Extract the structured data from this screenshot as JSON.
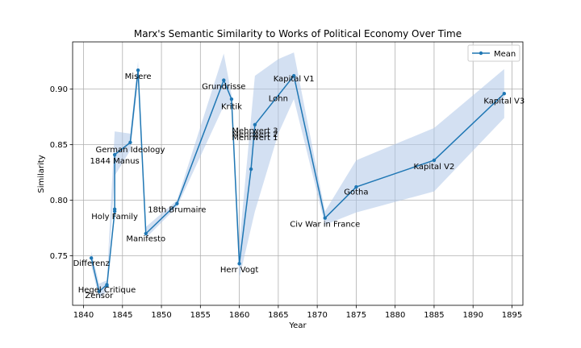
{
  "chart_data": {
    "type": "line",
    "title": "Marx's Semantic Similarity to Works of Political Economy Over Time",
    "xlabel": "Year",
    "ylabel": "Similarity",
    "xlim": [
      1838.6,
      1896.4
    ],
    "ylim": [
      0.7055,
      0.9425
    ],
    "xticks": [
      1840,
      1845,
      1850,
      1855,
      1860,
      1865,
      1870,
      1875,
      1880,
      1885,
      1890,
      1895
    ],
    "yticks": [
      0.75,
      0.8,
      0.85,
      0.9
    ],
    "ytick_labels": [
      "0.75",
      "0.80",
      "0.85",
      "0.90"
    ],
    "grid": true,
    "legend_position": "top-right",
    "colors": {
      "line": "#1f77b4",
      "band": "#aec7e8"
    },
    "series": [
      {
        "name": "Mean",
        "points": [
          {
            "x": 1841,
            "y": 0.748
          },
          {
            "x": 1842,
            "y": 0.718
          },
          {
            "x": 1843,
            "y": 0.724
          },
          {
            "x": 1843,
            "y": 0.723
          },
          {
            "x": 1844,
            "y": 0.79
          },
          {
            "x": 1844,
            "y": 0.792
          },
          {
            "x": 1844,
            "y": 0.841
          },
          {
            "x": 1846,
            "y": 0.852
          },
          {
            "x": 1847,
            "y": 0.917
          },
          {
            "x": 1848,
            "y": 0.77
          },
          {
            "x": 1852,
            "y": 0.797
          },
          {
            "x": 1858,
            "y": 0.908
          },
          {
            "x": 1859,
            "y": 0.891
          },
          {
            "x": 1860,
            "y": 0.743
          },
          {
            "x": 1861.5,
            "y": 0.828
          },
          {
            "x": 1862,
            "y": 0.868
          },
          {
            "x": 1867,
            "y": 0.912
          },
          {
            "x": 1871,
            "y": 0.784
          },
          {
            "x": 1875,
            "y": 0.812
          },
          {
            "x": 1885,
            "y": 0.836
          },
          {
            "x": 1894,
            "y": 0.896
          }
        ],
        "band": {
          "x": [
            1841,
            1842,
            1843,
            1844,
            1846,
            1847,
            1848,
            1852,
            1858,
            1859,
            1860,
            1862,
            1865,
            1867,
            1871,
            1875,
            1885,
            1894
          ],
          "upper": [
            0.754,
            0.725,
            0.728,
            0.862,
            0.86,
            0.925,
            0.776,
            0.8,
            0.932,
            0.895,
            0.76,
            0.912,
            0.927,
            0.933,
            0.79,
            0.836,
            0.865,
            0.918
          ],
          "lower": [
            0.741,
            0.712,
            0.718,
            0.822,
            0.845,
            0.908,
            0.766,
            0.794,
            0.885,
            0.885,
            0.73,
            0.79,
            0.86,
            0.891,
            0.778,
            0.789,
            0.808,
            0.874
          ]
        }
      }
    ],
    "annotations": [
      {
        "text": "Differenz",
        "x": 1841,
        "y": 0.744
      },
      {
        "text": "Hegel Critique",
        "x": 1843,
        "y": 0.72
      },
      {
        "text": "Zensor",
        "x": 1842,
        "y": 0.715
      },
      {
        "text": "Holy Family",
        "x": 1844,
        "y": 0.786
      },
      {
        "text": "1844 Manus",
        "x": 1844,
        "y": 0.836
      },
      {
        "text": "German Ideology",
        "x": 1846,
        "y": 0.846
      },
      {
        "text": "Misere",
        "x": 1847,
        "y": 0.912
      },
      {
        "text": "Manifesto",
        "x": 1848,
        "y": 0.766
      },
      {
        "text": "18th Brumaire",
        "x": 1852,
        "y": 0.792
      },
      {
        "text": "Grundrisse",
        "x": 1858,
        "y": 0.903
      },
      {
        "text": "Kritik",
        "x": 1859,
        "y": 0.885
      },
      {
        "text": "Herr Vogt",
        "x": 1860,
        "y": 0.738
      },
      {
        "text": "Mehrwert 3",
        "x": 1862,
        "y": 0.863
      },
      {
        "text": "Mehrwert 2",
        "x": 1862,
        "y": 0.86
      },
      {
        "text": "Mehrwert 1",
        "x": 1862,
        "y": 0.857
      },
      {
        "text": "Lohn",
        "x": 1865,
        "y": 0.892
      },
      {
        "text": "Kapital V1",
        "x": 1867,
        "y": 0.91
      },
      {
        "text": "Civ War in France",
        "x": 1871,
        "y": 0.779
      },
      {
        "text": "Gotha",
        "x": 1875,
        "y": 0.808
      },
      {
        "text": "Kapital V2",
        "x": 1885,
        "y": 0.831
      },
      {
        "text": "Kapital V3",
        "x": 1894,
        "y": 0.89
      }
    ]
  }
}
